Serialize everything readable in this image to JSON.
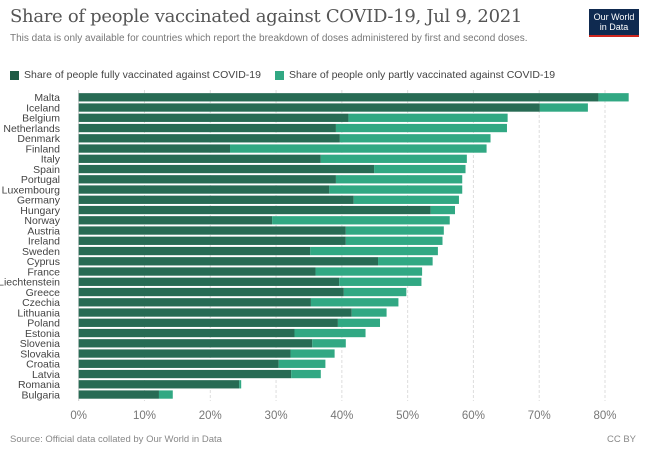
{
  "title": "Share of people vaccinated against COVID-19, Jul 9, 2021",
  "subtitle": "This data is only available for countries which report the breakdown of doses administered by first and second doses.",
  "logo": {
    "line1": "Our World",
    "line2": "in Data",
    "bg": "#0f2a50",
    "accent": "#ce261e"
  },
  "footer": {
    "source": "Source: Official data collated by Our World in Data",
    "license": "CC BY"
  },
  "chart_data": {
    "type": "bar",
    "orientation": "horizontal",
    "stacked": true,
    "title": "Share of people vaccinated against COVID-19, Jul 9, 2021",
    "xlim": [
      0,
      80
    ],
    "x_ticks": [
      "0%",
      "10%",
      "20%",
      "30%",
      "40%",
      "50%",
      "60%",
      "70%",
      "80%"
    ],
    "grid": "vertical dashed",
    "legend_placement": "top",
    "categories": [
      "Malta",
      "Iceland",
      "Belgium",
      "Netherlands",
      "Denmark",
      "Finland",
      "Italy",
      "Spain",
      "Portugal",
      "Luxembourg",
      "Germany",
      "Hungary",
      "Norway",
      "Austria",
      "Ireland",
      "Sweden",
      "Cyprus",
      "France",
      "Liechtenstein",
      "Greece",
      "Czechia",
      "Lithuania",
      "Poland",
      "Estonia",
      "Slovenia",
      "Slovakia",
      "Croatia",
      "Latvia",
      "Romania",
      "Bulgaria"
    ],
    "series": [
      {
        "name": "Share of people fully vaccinated against COVID-19",
        "color": "#276b54",
        "values": [
          79.0,
          70.1,
          41.0,
          39.1,
          39.7,
          23.0,
          36.8,
          44.9,
          39.1,
          38.1,
          41.8,
          53.5,
          29.4,
          40.6,
          40.6,
          35.2,
          45.5,
          36.0,
          39.6,
          40.3,
          35.3,
          41.5,
          39.4,
          32.8,
          35.5,
          32.2,
          30.4,
          32.3,
          24.4,
          12.2
        ]
      },
      {
        "name": "Share of people only partly vaccinated against COVID-19",
        "color": "#31a883",
        "values": [
          4.6,
          7.3,
          24.2,
          26.0,
          22.9,
          39.0,
          22.2,
          13.9,
          19.2,
          20.2,
          16.0,
          3.7,
          27.0,
          14.9,
          14.7,
          19.4,
          8.3,
          16.2,
          12.5,
          9.5,
          13.3,
          5.3,
          6.4,
          10.8,
          5.1,
          6.7,
          7.1,
          4.5,
          0.3,
          2.1
        ]
      }
    ]
  }
}
